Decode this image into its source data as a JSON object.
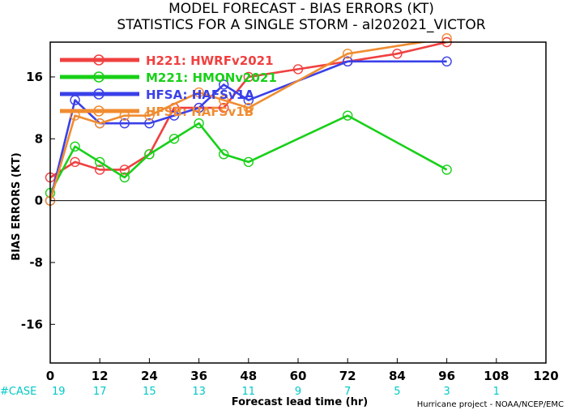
{
  "chart_data": {
    "type": "line",
    "title_line1": "MODEL FORECAST - BIAS ERRORS (KT)",
    "title_line2": "STATISTICS FOR A SINGLE STORM - al202021_VICTOR",
    "xlabel": "Forecast lead time (hr)",
    "ylabel": "BIAS ERRORS (KT)",
    "xlim": [
      0,
      120
    ],
    "ylim": [
      -21,
      20.5
    ],
    "xticks": [
      0,
      12,
      24,
      36,
      48,
      60,
      72,
      84,
      96,
      108,
      120
    ],
    "yticks": [
      -16,
      -8,
      0,
      8,
      16
    ],
    "zero_line": true,
    "legend_position": "top-left",
    "case_row": {
      "label": "#CASE",
      "x": [
        0,
        12,
        24,
        36,
        48,
        60,
        72,
        84,
        96,
        108
      ],
      "counts": [
        "19",
        "17",
        "15",
        "13",
        "11",
        "9",
        "7",
        "5",
        "3",
        "1"
      ]
    },
    "credit": "Hurricane project - NOAA/NCEP/EMC",
    "series": [
      {
        "name": "H221: HWRFv2021",
        "color": "#f04040",
        "x": [
          0,
          6,
          12,
          18,
          24,
          30,
          36,
          42,
          48,
          60,
          72,
          84,
          96
        ],
        "y": [
          3,
          5,
          4,
          4,
          6,
          12,
          12,
          12,
          16,
          17,
          18,
          19,
          20.5
        ]
      },
      {
        "name": "M221: HMONv2021",
        "color": "#18d018",
        "x": [
          0,
          6,
          12,
          18,
          24,
          30,
          36,
          42,
          48,
          72,
          96
        ],
        "y": [
          1,
          7,
          5,
          3,
          6,
          8,
          10,
          6,
          5,
          11,
          4
        ]
      },
      {
        "name": "HFSA: HAFSv1A",
        "color": "#3a40e8",
        "x": [
          0,
          6,
          12,
          18,
          24,
          30,
          36,
          42,
          48,
          72,
          96
        ],
        "y": [
          0,
          13,
          10,
          10,
          10,
          11,
          12,
          15,
          13,
          18,
          18
        ]
      },
      {
        "name": "HFSB: HAFSv1B",
        "color": "#f08c30",
        "x": [
          0,
          6,
          12,
          18,
          24,
          36,
          42,
          48,
          72,
          96
        ],
        "y": [
          0,
          11,
          10,
          11,
          11,
          14,
          13,
          12,
          19,
          21
        ]
      }
    ]
  }
}
